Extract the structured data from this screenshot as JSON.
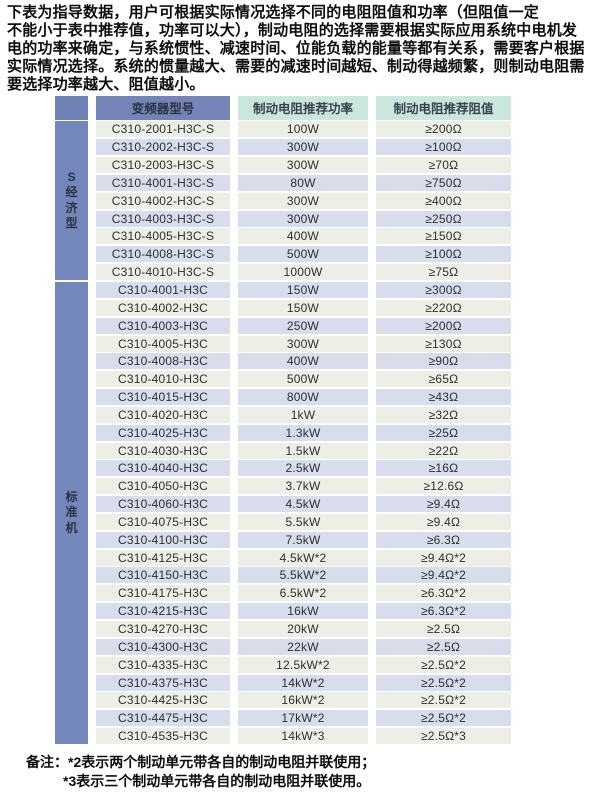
{
  "intro": {
    "lines": [
      "下表为指导数据，用户可根据实际情况选择不同的电阻阻值和功率（但阻值一定",
      "不能小于表中推荐值，功率可以大），制动电阻的选择需要根据实际应用系统中电机发",
      "电的功率来确定，与系统惯性、减速时间、位能负载的能量等都有关系，需要客户根据",
      "实际情况选择。系统的惯量越大、需要的减速时间越短、制动得越频繁，则制动电阻需",
      "要选择功率越大、阻值越小。"
    ]
  },
  "table": {
    "headers": {
      "model": "变频器型号",
      "power": "制动电阻推荐功率",
      "resistance": "制动电阻推荐阻值"
    },
    "colors": {
      "header_blue": "#7284b8",
      "header_teal": "#c9e7dd",
      "stripe_light": "#edeee6",
      "stripe_lavender": "#d9dcec"
    },
    "groups": [
      {
        "label": "S经济型",
        "rows": [
          [
            "C310-2001-H3C-S",
            "100W",
            "≥200Ω"
          ],
          [
            "C310-2002-H3C-S",
            "300W",
            "≥100Ω"
          ],
          [
            "C310-2003-H3C-S",
            "300W",
            "≥70Ω"
          ],
          [
            "C310-4001-H3C-S",
            "80W",
            "≥750Ω"
          ],
          [
            "C310-4002-H3C-S",
            "300W",
            "≥400Ω"
          ],
          [
            "C310-4003-H3C-S",
            "300W",
            "≥250Ω"
          ],
          [
            "C310-4005-H3C-S",
            "400W",
            "≥150Ω"
          ],
          [
            "C310-4008-H3C-S",
            "500W",
            "≥100Ω"
          ],
          [
            "C310-4010-H3C-S",
            "1000W",
            "≥75Ω"
          ]
        ]
      },
      {
        "label": "标准机",
        "rows": [
          [
            "C310-4001-H3C",
            "150W",
            "≥300Ω"
          ],
          [
            "C310-4002-H3C",
            "150W",
            "≥220Ω"
          ],
          [
            "C310-4003-H3C",
            "250W",
            "≥200Ω"
          ],
          [
            "C310-4005-H3C",
            "300W",
            "≥130Ω"
          ],
          [
            "C310-4008-H3C",
            "400W",
            "≥90Ω"
          ],
          [
            "C310-4010-H3C",
            "500W",
            "≥65Ω"
          ],
          [
            "C310-4015-H3C",
            "800W",
            "≥43Ω"
          ],
          [
            "C310-4020-H3C",
            "1kW",
            "≥32Ω"
          ],
          [
            "C310-4025-H3C",
            "1.3kW",
            "≥25Ω"
          ],
          [
            "C310-4030-H3C",
            "1.5kW",
            "≥22Ω"
          ],
          [
            "C310-4040-H3C",
            "2.5kW",
            "≥16Ω"
          ],
          [
            "C310-4050-H3C",
            "3.7kW",
            "≥12.6Ω"
          ],
          [
            "C310-4060-H3C",
            "4.5kW",
            "≥9.4Ω"
          ],
          [
            "C310-4075-H3C",
            "5.5kW",
            "≥9.4Ω"
          ],
          [
            "C310-4100-H3C",
            "7.5kW",
            "≥6.3Ω"
          ],
          [
            "C310-4125-H3C",
            "4.5kW*2",
            "≥9.4Ω*2"
          ],
          [
            "C310-4150-H3C",
            "5.5kW*2",
            "≥9.4Ω*2"
          ],
          [
            "C310-4175-H3C",
            "6.5kW*2",
            "≥6.3Ω*2"
          ],
          [
            "C310-4215-H3C",
            "16kW",
            "≥6.3Ω*2"
          ],
          [
            "C310-4270-H3C",
            "20kW",
            "≥2.5Ω"
          ],
          [
            "C310-4300-H3C",
            "22kW",
            "≥2.5Ω"
          ],
          [
            "C310-4335-H3C",
            "12.5kW*2",
            "≥2.5Ω*2"
          ],
          [
            "C310-4375-H3C",
            "14kW*2",
            "≥2.5Ω*2"
          ],
          [
            "C310-4425-H3C",
            "16kW*2",
            "≥2.5Ω*2"
          ],
          [
            "C310-4475-H3C",
            "17kW*2",
            "≥2.5Ω*2"
          ],
          [
            "C310-4535-H3C",
            "14kW*3",
            "≥2.5Ω*3"
          ]
        ]
      }
    ]
  },
  "notes": {
    "label": "备注：",
    "note2": "*2表示两个制动单元带各自的制动电阻并联使用；",
    "note3": "*3表示三个制动单元带各自的制动电阻并联使用。"
  }
}
